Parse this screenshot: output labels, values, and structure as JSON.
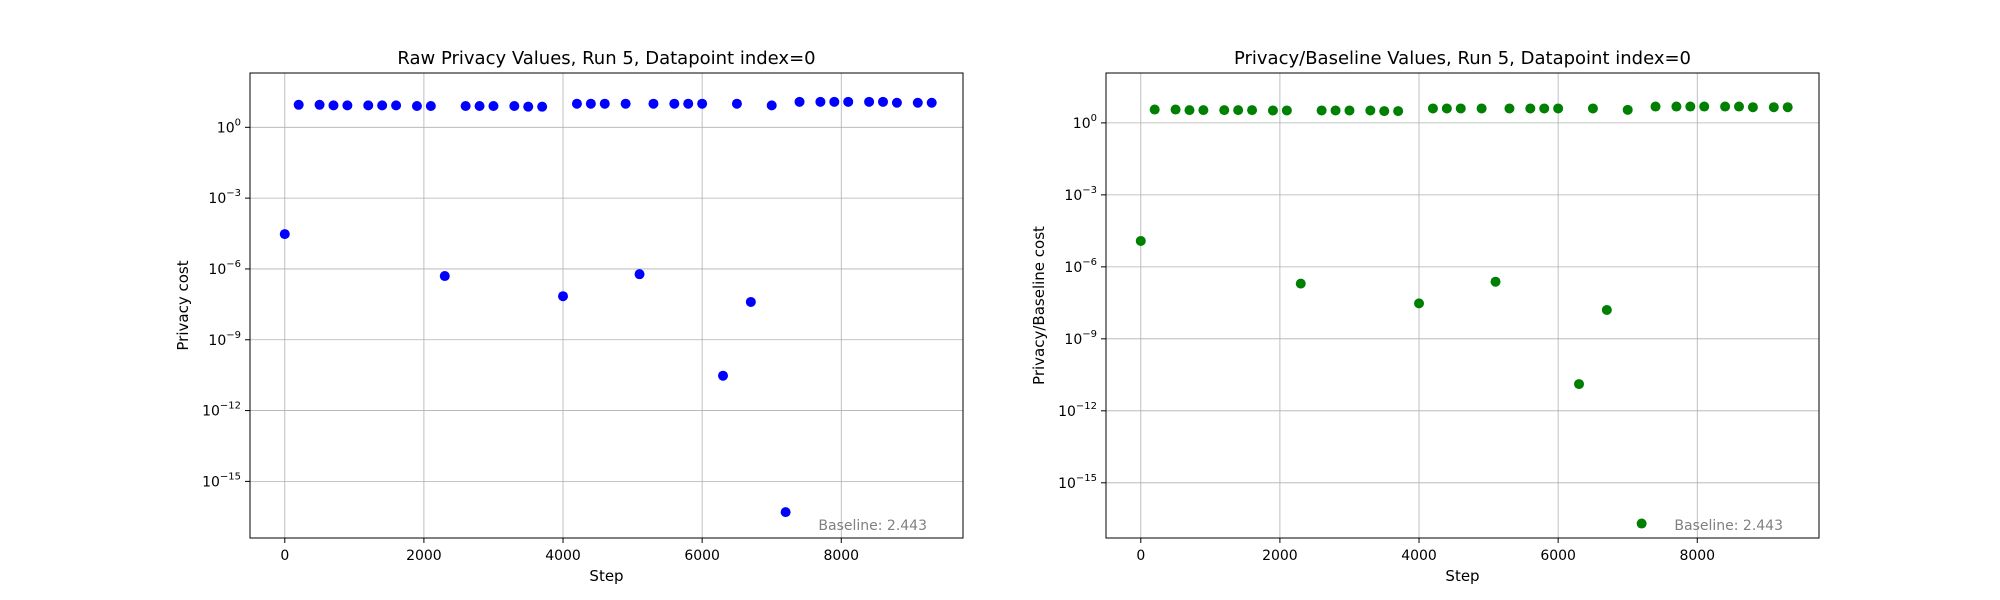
{
  "figure": {
    "charts": [
      {
        "title": "Raw Privacy Values, Run 5, Datapoint index=0",
        "xlabel": "Step",
        "ylabel": "Privacy cost",
        "annotation": "Baseline: 2.443",
        "color": "#0000ff"
      },
      {
        "title": "Privacy/Baseline Values, Run 5, Datapoint index=0",
        "xlabel": "Step",
        "ylabel": "Privacy/Baseline cost",
        "annotation": "Baseline: 2.443",
        "color": "#008000"
      }
    ]
  },
  "chart_data": [
    {
      "type": "scatter",
      "title": "Raw Privacy Values, Run 5, Datapoint index=0",
      "xlabel": "Step",
      "ylabel": "Privacy cost",
      "x_ticks": [
        0,
        2000,
        4000,
        6000,
        8000
      ],
      "xlim": [
        -500,
        9750
      ],
      "y_scale": "log",
      "ylim": [
        4e-18,
        200
      ],
      "y_tick_exponents": [
        0,
        -3,
        -6,
        -9,
        -12,
        -15
      ],
      "grid": true,
      "series": [
        {
          "color": "#0000ff",
          "x": [
            0,
            200,
            500,
            700,
            900,
            1200,
            1400,
            1600,
            1900,
            2100,
            2300,
            2600,
            2800,
            3000,
            3300,
            3500,
            3700,
            4000,
            4200,
            4400,
            4600,
            4900,
            5100,
            5300,
            5600,
            5800,
            6000,
            6300,
            6500,
            6700,
            7000,
            7200,
            7400,
            7700,
            7900,
            8100,
            8400,
            8600,
            8800,
            9100,
            9300
          ],
          "y": [
            3e-05,
            9,
            9,
            8.5,
            8.5,
            8.5,
            8.5,
            8.5,
            8,
            8,
            5e-07,
            8,
            8,
            8,
            8,
            7.5,
            7.5,
            7e-08,
            10,
            10,
            10,
            10,
            6e-07,
            10,
            10,
            10,
            10,
            3e-11,
            10,
            4e-08,
            8.5,
            5e-17,
            12,
            12,
            12,
            12,
            12,
            12,
            11,
            11,
            11
          ]
        }
      ]
    },
    {
      "type": "scatter",
      "title": "Privacy/Baseline Values, Run 5, Datapoint index=0",
      "xlabel": "Step",
      "ylabel": "Privacy/Baseline cost",
      "x_ticks": [
        0,
        2000,
        4000,
        6000,
        8000
      ],
      "xlim": [
        -500,
        9750
      ],
      "y_scale": "log",
      "ylim": [
        5e-18,
        120
      ],
      "y_tick_exponents": [
        0,
        -3,
        -6,
        -9,
        -12,
        -15
      ],
      "grid": true,
      "series": [
        {
          "color": "#008000",
          "x": [
            0,
            200,
            500,
            700,
            900,
            1200,
            1400,
            1600,
            1900,
            2100,
            2300,
            2600,
            2800,
            3000,
            3300,
            3500,
            3700,
            4000,
            4200,
            4400,
            4600,
            4900,
            5100,
            5300,
            5600,
            5800,
            6000,
            6300,
            6500,
            6700,
            7000,
            7200,
            7400,
            7700,
            7900,
            8100,
            8400,
            8600,
            8800,
            9100,
            9300
          ],
          "y": [
            1.2e-05,
            3.6,
            3.6,
            3.4,
            3.4,
            3.4,
            3.4,
            3.4,
            3.3,
            3.3,
            2e-07,
            3.3,
            3.3,
            3.3,
            3.3,
            3.1,
            3.1,
            3e-08,
            4,
            4,
            4,
            4,
            2.4e-07,
            4,
            4,
            4,
            4,
            1.3e-11,
            4,
            1.6e-08,
            3.5,
            2e-17,
            4.8,
            4.8,
            4.8,
            4.8,
            4.8,
            4.8,
            4.5,
            4.5,
            4.5
          ]
        }
      ]
    }
  ]
}
